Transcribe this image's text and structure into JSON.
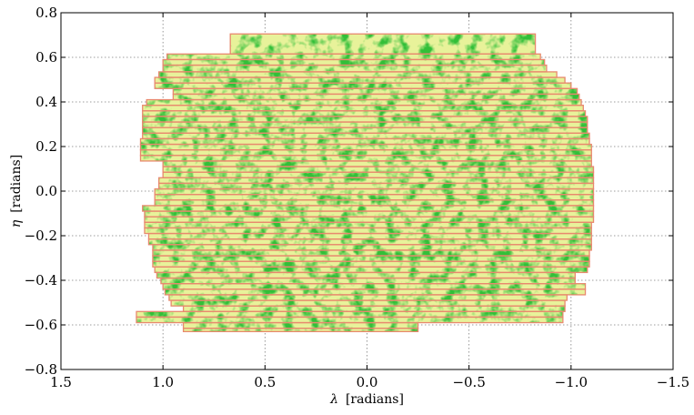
{
  "chart_data": {
    "type": "scatter",
    "title": "",
    "xlabel_symbol": "λ",
    "xlabel_unit": "[radians]",
    "ylabel_symbol": "η",
    "ylabel_unit": "[radians]",
    "xlim": [
      1.5,
      -1.5
    ],
    "ylim": [
      -0.8,
      0.8
    ],
    "x_ticks": [
      1.5,
      1.0,
      0.5,
      0.0,
      -0.5,
      -1.0,
      -1.5
    ],
    "x_tick_labels": [
      "1.5",
      "1.0",
      "0.5",
      "0.0",
      "−0.5",
      "−1.0",
      "−1.5"
    ],
    "y_ticks": [
      0.8,
      0.6,
      0.4,
      0.2,
      0.0,
      -0.2,
      -0.4,
      -0.6,
      -0.8
    ],
    "y_tick_labels": [
      "0.8",
      "0.6",
      "0.4",
      "0.2",
      "0.0",
      "−0.2",
      "−0.4",
      "−0.6",
      "−0.8"
    ],
    "grid": true,
    "colors": {
      "fill_light": "#e8f29a",
      "point_dark": "#0a8a0a",
      "stripe_outline": "#e8896e"
    },
    "stripes": [
      {
        "eta": [
          0.615,
          0.705
        ],
        "lambda": [
          0.67,
          -0.825
        ]
      },
      {
        "eta": [
          0.59,
          0.615
        ],
        "lambda": [
          0.98,
          -0.85
        ]
      },
      {
        "eta": [
          0.565,
          0.59
        ],
        "lambda": [
          1.0,
          -0.87
        ]
      },
      {
        "eta": [
          0.535,
          0.565
        ],
        "lambda": [
          1.0,
          -0.88
        ]
      },
      {
        "eta": [
          0.51,
          0.535
        ],
        "lambda": [
          1.02,
          -0.93
        ]
      },
      {
        "eta": [
          0.485,
          0.51
        ],
        "lambda": [
          1.04,
          -0.97
        ]
      },
      {
        "eta": [
          0.46,
          0.485
        ],
        "lambda": [
          1.04,
          -1.0
        ]
      },
      {
        "eta": [
          0.435,
          0.46
        ],
        "lambda": [
          0.95,
          -1.03
        ]
      },
      {
        "eta": [
          0.41,
          0.435
        ],
        "lambda": [
          0.95,
          -1.04
        ]
      },
      {
        "eta": [
          0.385,
          0.41
        ],
        "lambda": [
          1.08,
          -1.05
        ]
      },
      {
        "eta": [
          0.36,
          0.385
        ],
        "lambda": [
          1.1,
          -1.06
        ]
      },
      {
        "eta": [
          0.335,
          0.36
        ],
        "lambda": [
          1.1,
          -1.07
        ]
      },
      {
        "eta": [
          0.31,
          0.335
        ],
        "lambda": [
          1.1,
          -1.08
        ]
      },
      {
        "eta": [
          0.285,
          0.31
        ],
        "lambda": [
          1.1,
          -1.08
        ]
      },
      {
        "eta": [
          0.26,
          0.285
        ],
        "lambda": [
          1.1,
          -1.08
        ]
      },
      {
        "eta": [
          0.235,
          0.26
        ],
        "lambda": [
          1.1,
          -1.09
        ]
      },
      {
        "eta": [
          0.21,
          0.235
        ],
        "lambda": [
          1.11,
          -1.09
        ]
      },
      {
        "eta": [
          0.185,
          0.21
        ],
        "lambda": [
          1.11,
          -1.1
        ]
      },
      {
        "eta": [
          0.16,
          0.185
        ],
        "lambda": [
          1.11,
          -1.1
        ]
      },
      {
        "eta": [
          0.135,
          0.16
        ],
        "lambda": [
          1.11,
          -1.1
        ]
      },
      {
        "eta": [
          0.11,
          0.135
        ],
        "lambda": [
          1.0,
          -1.1
        ]
      },
      {
        "eta": [
          0.085,
          0.11
        ],
        "lambda": [
          1.0,
          -1.11
        ]
      },
      {
        "eta": [
          0.06,
          0.085
        ],
        "lambda": [
          1.0,
          -1.11
        ]
      },
      {
        "eta": [
          0.035,
          0.06
        ],
        "lambda": [
          1.02,
          -1.11
        ]
      },
      {
        "eta": [
          0.01,
          0.035
        ],
        "lambda": [
          1.02,
          -1.11
        ]
      },
      {
        "eta": [
          -0.015,
          0.01
        ],
        "lambda": [
          1.04,
          -1.11
        ]
      },
      {
        "eta": [
          -0.04,
          -0.015
        ],
        "lambda": [
          1.04,
          -1.11
        ]
      },
      {
        "eta": [
          -0.065,
          -0.04
        ],
        "lambda": [
          1.04,
          -1.11
        ]
      },
      {
        "eta": [
          -0.09,
          -0.065
        ],
        "lambda": [
          1.1,
          -1.11
        ]
      },
      {
        "eta": [
          -0.115,
          -0.09
        ],
        "lambda": [
          1.09,
          -1.11
        ]
      },
      {
        "eta": [
          -0.14,
          -0.115
        ],
        "lambda": [
          1.09,
          -1.11
        ]
      },
      {
        "eta": [
          -0.165,
          -0.14
        ],
        "lambda": [
          1.09,
          -1.1
        ]
      },
      {
        "eta": [
          -0.19,
          -0.165
        ],
        "lambda": [
          1.09,
          -1.1
        ]
      },
      {
        "eta": [
          -0.215,
          -0.19
        ],
        "lambda": [
          1.07,
          -1.1
        ]
      },
      {
        "eta": [
          -0.24,
          -0.215
        ],
        "lambda": [
          1.07,
          -1.1
        ]
      },
      {
        "eta": [
          -0.265,
          -0.24
        ],
        "lambda": [
          1.05,
          -1.1
        ]
      },
      {
        "eta": [
          -0.29,
          -0.265
        ],
        "lambda": [
          1.05,
          -1.09
        ]
      },
      {
        "eta": [
          -0.315,
          -0.29
        ],
        "lambda": [
          1.05,
          -1.09
        ]
      },
      {
        "eta": [
          -0.34,
          -0.315
        ],
        "lambda": [
          1.05,
          -1.09
        ]
      },
      {
        "eta": [
          -0.365,
          -0.34
        ],
        "lambda": [
          1.04,
          -1.08
        ]
      },
      {
        "eta": [
          -0.39,
          -0.365
        ],
        "lambda": [
          1.03,
          -1.02
        ]
      },
      {
        "eta": [
          -0.415,
          -0.39
        ],
        "lambda": [
          1.01,
          -1.02
        ]
      },
      {
        "eta": [
          -0.44,
          -0.415
        ],
        "lambda": [
          1.0,
          -1.07
        ]
      },
      {
        "eta": [
          -0.465,
          -0.44
        ],
        "lambda": [
          0.99,
          -1.07
        ]
      },
      {
        "eta": [
          -0.49,
          -0.465
        ],
        "lambda": [
          0.97,
          -0.98
        ]
      },
      {
        "eta": [
          -0.515,
          -0.49
        ],
        "lambda": [
          0.96,
          -0.97
        ]
      },
      {
        "eta": [
          -0.54,
          -0.515
        ],
        "lambda": [
          0.9,
          -0.97
        ]
      },
      {
        "eta": [
          -0.565,
          -0.54
        ],
        "lambda": [
          1.13,
          -0.96
        ]
      },
      {
        "eta": [
          -0.59,
          -0.565
        ],
        "lambda": [
          1.13,
          -0.96
        ]
      },
      {
        "eta": [
          -0.615,
          -0.59
        ],
        "lambda": [
          0.9,
          -0.25
        ]
      },
      {
        "eta": [
          -0.63,
          -0.615
        ],
        "lambda": [
          0.9,
          -0.25
        ]
      }
    ]
  }
}
